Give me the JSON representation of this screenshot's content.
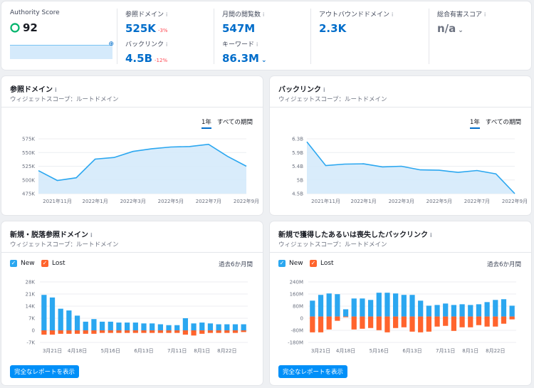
{
  "top": {
    "authority": {
      "label": "Authority Score",
      "value": "92"
    },
    "ref_domains": {
      "label": "参照ドメイン",
      "value": "525K",
      "delta": "-3%"
    },
    "backlinks": {
      "label": "バックリンク",
      "value": "4.5B",
      "delta": "-12%"
    },
    "monthly_visits": {
      "label": "月間の閲覧数",
      "value": "547M"
    },
    "keywords": {
      "label": "キーワード",
      "value": "86.3M"
    },
    "outbound": {
      "label": "アウトバウンドドメイン",
      "value": "2.3K"
    },
    "toxic": {
      "label": "総合有害スコア",
      "value": "n/a"
    }
  },
  "panels": {
    "ref_domains": {
      "title": "参照ドメイン",
      "subtitle": "ウィジェットスコープ：ルートドメイン",
      "tab_1y": "1年",
      "tab_all": "すべての期間"
    },
    "backlinks": {
      "title": "バックリンク",
      "subtitle": "ウィジェットスコープ：ルートドメイン",
      "tab_1y": "1年",
      "tab_all": "すべての期間"
    },
    "new_lost_domains": {
      "title": "新規・脱落参照ドメイン",
      "subtitle": "ウィジェットスコープ：ルートドメイン",
      "new": "New",
      "lost": "Lost",
      "period": "過去6か月間",
      "button": "完全なレポートを表示"
    },
    "new_lost_backlinks": {
      "title": "新規で獲得したあるいは喪失したバックリンク",
      "subtitle": "ウィジェットスコープ：ルートドメイン",
      "new": "New",
      "lost": "Lost",
      "period": "過去6か月間",
      "button": "完全なレポートを表示"
    }
  },
  "colors": {
    "accent": "#006dca",
    "new": "#2ba7f0",
    "lost": "#ff642d",
    "area": "#d5eafb"
  },
  "chart_data": [
    {
      "type": "area",
      "x": [
        "2021年10月",
        "2021年11月",
        "2021年12月",
        "2022年1月",
        "2022年2月",
        "2022年3月",
        "2022年4月",
        "2022年5月",
        "2022年6月",
        "2022年7月",
        "2022年8月",
        "2022年9月"
      ],
      "values": [
        517,
        499,
        504,
        538,
        541,
        552,
        557,
        560,
        561,
        565,
        543,
        525
      ],
      "unit": "K",
      "ylim": [
        475,
        575
      ],
      "yticks": [
        "475K",
        "500K",
        "525K",
        "550K",
        "575K"
      ],
      "xticks": [
        "2021年11月",
        "2022年1月",
        "2022年3月",
        "2022年5月",
        "2022年7月",
        "2022年9月"
      ]
    },
    {
      "type": "area",
      "x": [
        "2021年10月",
        "2021年11月",
        "2021年12月",
        "2022年1月",
        "2022年2月",
        "2022年3月",
        "2022年4月",
        "2022年5月",
        "2022年6月",
        "2022年7月",
        "2022年8月",
        "2022年9月"
      ],
      "values": [
        6.2,
        5.42,
        5.47,
        5.48,
        5.38,
        5.4,
        5.28,
        5.27,
        5.2,
        5.26,
        5.15,
        4.5
      ],
      "unit": "B",
      "ylim": [
        4.5,
        6.3
      ],
      "yticks": [
        "4.5B",
        "5B",
        "5.4B",
        "5.9B",
        "6.3B"
      ],
      "xticks": [
        "2021年11月",
        "2022年1月",
        "2022年3月",
        "2022年5月",
        "2022年7月",
        "2022年9月"
      ]
    },
    {
      "type": "bar",
      "series": [
        {
          "name": "New",
          "values": [
            20.5,
            19,
            12.5,
            11.5,
            8.5,
            5,
            6.5,
            5,
            5,
            4.5,
            4.5,
            4.5,
            4,
            4,
            3.5,
            3,
            3,
            7,
            4,
            4.5,
            4,
            3.5,
            3.5,
            3.5,
            3.5
          ]
        },
        {
          "name": "Lost",
          "values": [
            -2.5,
            -2.5,
            -2,
            -2,
            -2,
            -2,
            -2,
            -1.5,
            -1.5,
            -1.5,
            -1.5,
            -1.5,
            -1.5,
            -1.5,
            -1.5,
            -1.5,
            -1.5,
            -2.5,
            -3,
            -2,
            -1.5,
            -1.5,
            -1.5,
            -1.5,
            -1
          ]
        }
      ],
      "ylim": [
        -7,
        28
      ],
      "yticks": [
        "-7K",
        "0",
        "7K",
        "14K",
        "21K",
        "28K"
      ],
      "xticks": [
        "3月21日",
        "4月18日",
        "5月16日",
        "6月13日",
        "7月11日",
        "8月1日",
        "8月22日"
      ]
    },
    {
      "type": "bar",
      "series": [
        {
          "name": "New",
          "values": [
            110,
            150,
            160,
            155,
            50,
            125,
            125,
            115,
            165,
            165,
            160,
            150,
            150,
            110,
            75,
            80,
            90,
            80,
            85,
            80,
            85,
            100,
            115,
            120,
            75
          ]
        },
        {
          "name": "Lost",
          "values": [
            -110,
            -110,
            -90,
            -30,
            -5,
            -90,
            -85,
            -80,
            -95,
            -110,
            -80,
            -75,
            -105,
            -110,
            -105,
            -70,
            -65,
            -100,
            -75,
            -75,
            -60,
            -70,
            -70,
            -50,
            -20
          ]
        }
      ],
      "ylim": [
        -180,
        240
      ],
      "yticks": [
        "-180M",
        "-80M",
        "0",
        "80M",
        "160M",
        "240M"
      ],
      "xticks": [
        "3月21日",
        "4月18日",
        "5月16日",
        "6月13日",
        "7月11日",
        "8月1日",
        "8月22日"
      ]
    }
  ]
}
